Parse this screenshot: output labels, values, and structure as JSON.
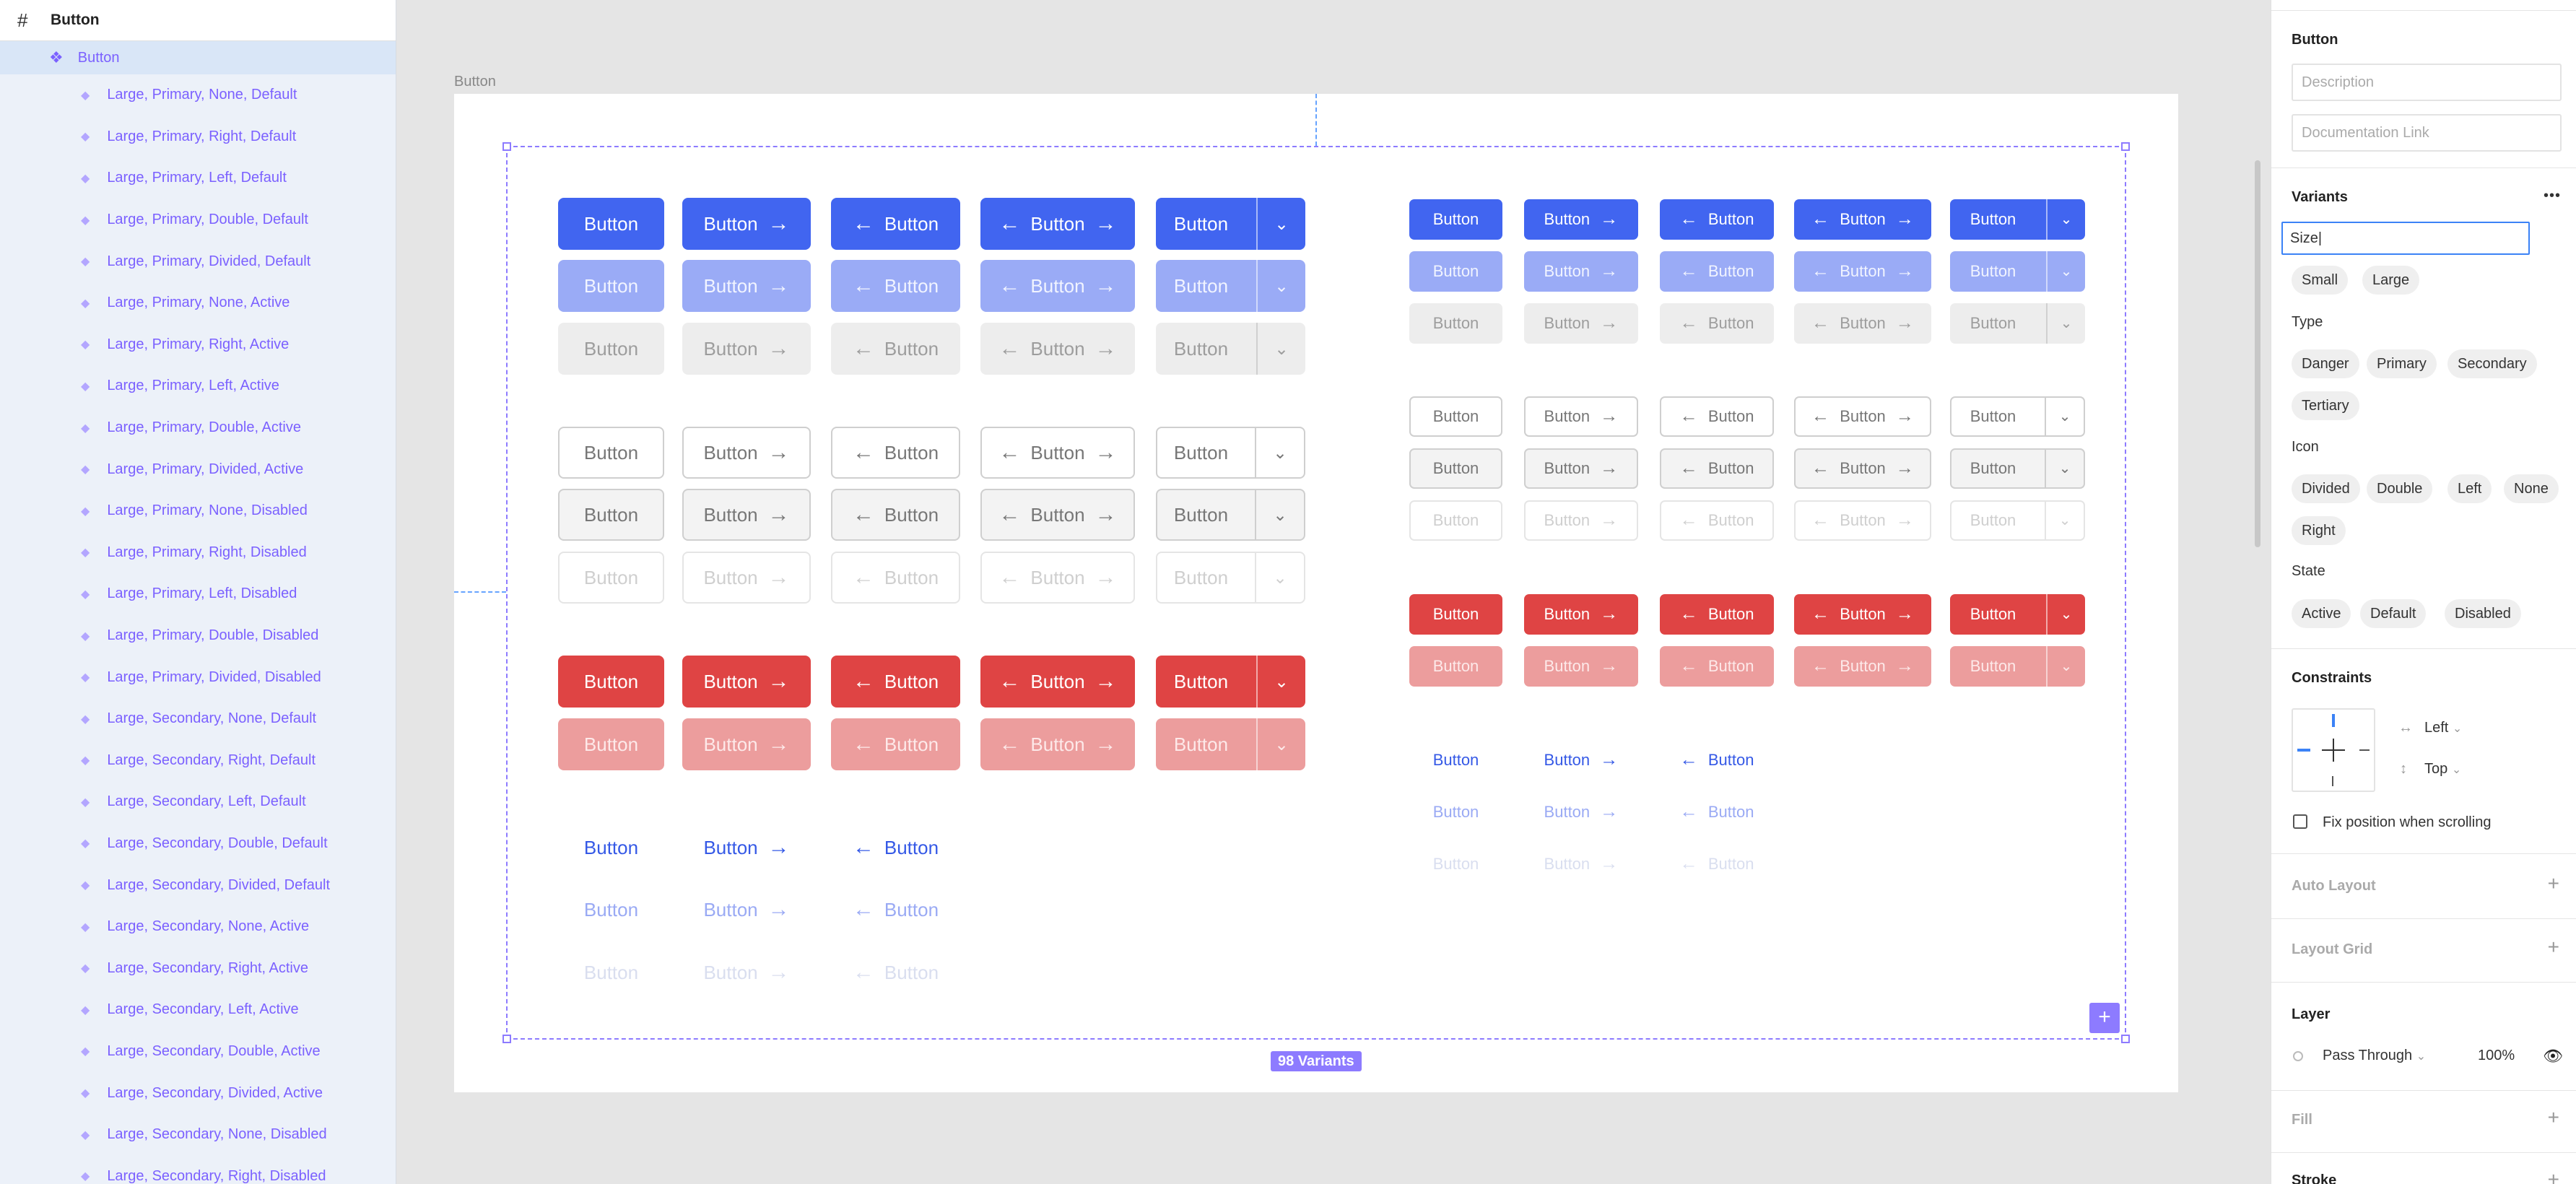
{
  "layers": {
    "set_name": "Button",
    "component_name": "Button",
    "items": [
      "Large, Primary, None, Default",
      "Large, Primary, Right, Default",
      "Large, Primary, Left, Default",
      "Large, Primary, Double, Default",
      "Large, Primary, Divided, Default",
      "Large, Primary, None, Active",
      "Large, Primary, Right, Active",
      "Large, Primary, Left, Active",
      "Large, Primary, Double, Active",
      "Large, Primary, Divided, Active",
      "Large, Primary, None, Disabled",
      "Large, Primary, Right, Disabled",
      "Large, Primary, Left, Disabled",
      "Large, Primary, Double, Disabled",
      "Large, Primary, Divided, Disabled",
      "Large, Secondary, None, Default",
      "Large, Secondary, Right, Default",
      "Large, Secondary, Left, Default",
      "Large, Secondary, Double, Default",
      "Large, Secondary, Divided, Default",
      "Large, Secondary, None, Active",
      "Large, Secondary, Right, Active",
      "Large, Secondary, Left, Active",
      "Large, Secondary, Double, Active",
      "Large, Secondary, Divided, Active",
      "Large, Secondary, None, Disabled",
      "Large, Secondary, Right, Disabled"
    ]
  },
  "canvas": {
    "frame_title": "Button",
    "button_label": "Button",
    "variants_badge": "98 Variants",
    "add_icon": "+"
  },
  "icons": {
    "arrow_right": "→",
    "arrow_left": "←",
    "chevron_down": "⌄",
    "frame": "#",
    "component": "❖",
    "variant": "◆"
  },
  "colors": {
    "primary": "#4165f0",
    "danger": "#df4444",
    "selection": "#8d7bff",
    "layer_text": "#7b61ff"
  },
  "props": {
    "component_title": "Button",
    "description_placeholder": "Description",
    "doc_link_placeholder": "Documentation Link",
    "variants_title": "Variants",
    "more_icon": "•••",
    "size_input_value": "Size|",
    "size_options": [
      "Small",
      "Large"
    ],
    "type_label": "Type",
    "type_options": [
      "Danger",
      "Primary",
      "Secondary",
      "Tertiary"
    ],
    "icon_label": "Icon",
    "icon_options": [
      "Divided",
      "Double",
      "Left",
      "None",
      "Right"
    ],
    "state_label": "State",
    "state_options": [
      "Active",
      "Default",
      "Disabled"
    ],
    "constraints_title": "Constraints",
    "constraint_h": "Left",
    "constraint_v": "Top",
    "fix_position_label": "Fix position when scrolling",
    "auto_layout_title": "Auto Layout",
    "layout_grid_title": "Layout Grid",
    "layer_title": "Layer",
    "blend_mode": "Pass Through",
    "opacity": "100%",
    "fill_title": "Fill",
    "stroke_title": "Stroke",
    "plus_icon": "+"
  }
}
